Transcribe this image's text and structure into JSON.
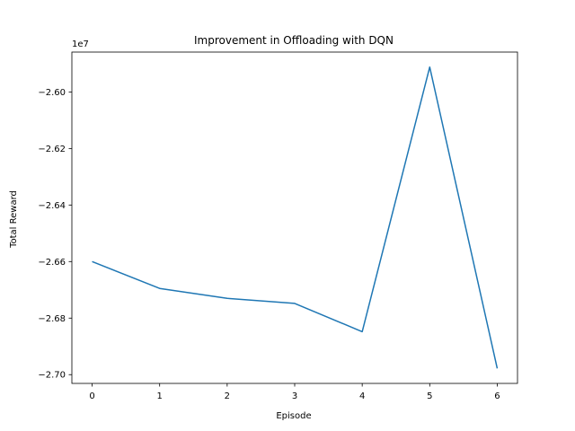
{
  "chart_data": {
    "type": "line",
    "title": "Improvement in Offloading with DQN",
    "xlabel": "Episode",
    "ylabel": "Total Reward",
    "y_offset_label": "1e7",
    "x": [
      0,
      1,
      2,
      3,
      4,
      5,
      6
    ],
    "series": [
      {
        "values": [
          -26600000,
          -26695000,
          -26730000,
          -26748000,
          -26848000,
          -25912000,
          -26978000
        ],
        "color": "#1f77b4"
      }
    ],
    "xticks": [
      0,
      1,
      2,
      3,
      4,
      5,
      6
    ],
    "xtick_labels": [
      "0",
      "1",
      "2",
      "3",
      "4",
      "5",
      "6"
    ],
    "yticks": [
      -27000000,
      -26800000,
      -26600000,
      -26400000,
      -26200000,
      -26000000
    ],
    "ytick_labels": [
      "−2.70",
      "−2.68",
      "−2.66",
      "−2.64",
      "−2.62",
      "−2.60"
    ],
    "xlim": [
      -0.3,
      6.3
    ],
    "ylim": [
      -27031000,
      -25859000
    ],
    "grid": false,
    "legend": false
  }
}
